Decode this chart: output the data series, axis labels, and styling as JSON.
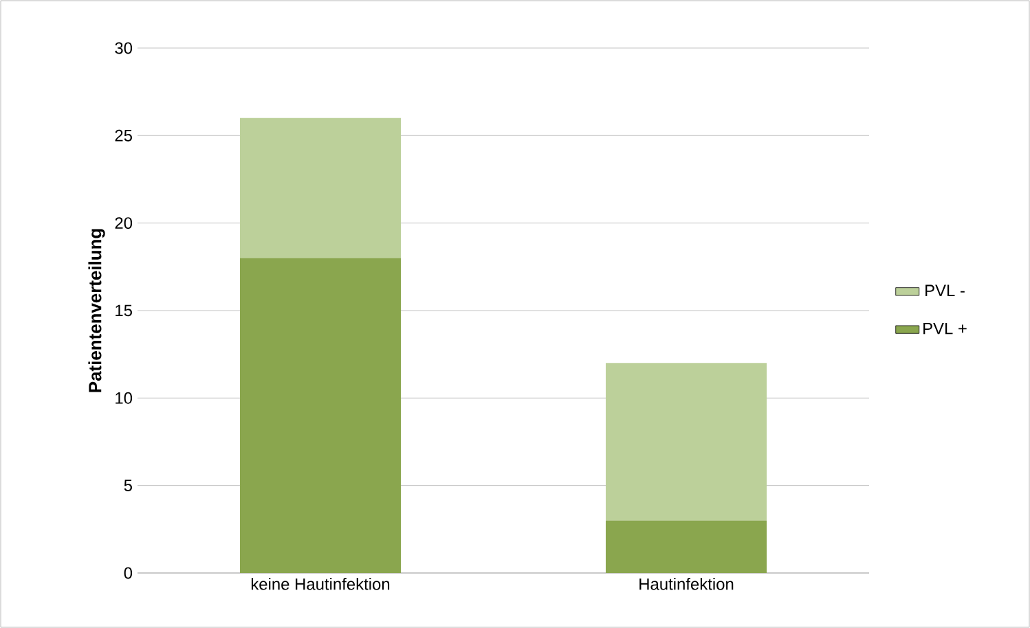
{
  "chart_data": {
    "type": "bar",
    "stacked": true,
    "ylabel": "Patientenverteilung",
    "categories": [
      "keine Hautinfektion",
      "Hautinfektion"
    ],
    "series": [
      {
        "name": "PVL +",
        "color": "#8aa64e",
        "values": [
          18,
          3
        ]
      },
      {
        "name": "PVL -",
        "color": "#bcd09a",
        "values": [
          8,
          9
        ]
      }
    ],
    "ylim": [
      0,
      30
    ],
    "yticks": [
      0,
      5,
      10,
      15,
      20,
      25,
      30
    ],
    "grid": "y",
    "legend": "right"
  }
}
